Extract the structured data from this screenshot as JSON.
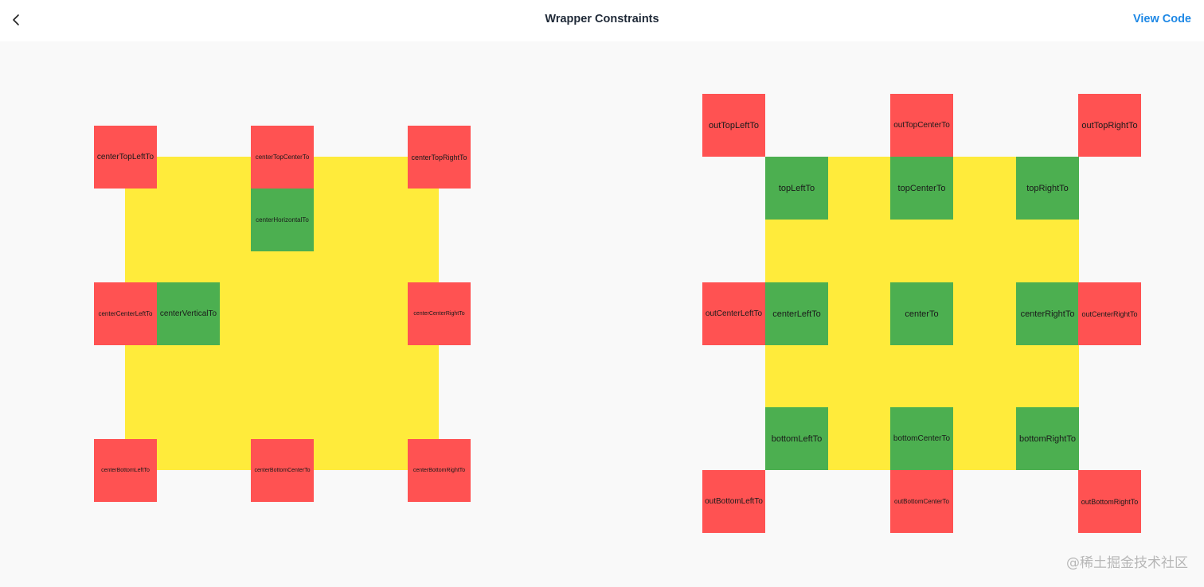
{
  "header": {
    "title": "Wrapper Constraints",
    "view_code_label": "View Code",
    "back_icon": "chevron-left-icon"
  },
  "left_panel": {
    "red": {
      "top_left": "centerTopLeftTo",
      "top_center": "centerTopCenterTo",
      "top_right": "centerTopRightTo",
      "center_left": "centerCenterLeftTo",
      "center_right": "centerCenterRightTo",
      "bottom_left": "centerBottomLeftTo",
      "bottom_center": "centerBottomCenterTo",
      "bottom_right": "centerBottomRightTo"
    },
    "green": {
      "horizontal": "centerHorizontalTo",
      "vertical": "centerVerticalTo"
    }
  },
  "right_panel": {
    "outer": {
      "top_left": "outTopLeftTo",
      "top_center": "outTopCenterTo",
      "top_right": "outTopRightTo",
      "center_left": "outCenterLeftTo",
      "center_right": "outCenterRightTo",
      "bottom_left": "outBottomLeftTo",
      "bottom_center": "outBottomCenterTo",
      "bottom_right": "outBottomRightTo"
    },
    "inner": {
      "top_left": "topLeftTo",
      "top_center": "topCenterTo",
      "top_right": "topRightTo",
      "center_left": "centerLeftTo",
      "center": "centerTo",
      "center_right": "centerRightTo",
      "bottom_left": "bottomLeftTo",
      "bottom_center": "bottomCenterTo",
      "bottom_right": "bottomRightTo"
    }
  },
  "watermark": "@稀土掘金技术社区",
  "colors": {
    "constraint_red": "#ff5252",
    "anchor_green": "#4caf50",
    "parent_yellow": "#ffeb3b",
    "link_blue": "#1e88e5"
  }
}
